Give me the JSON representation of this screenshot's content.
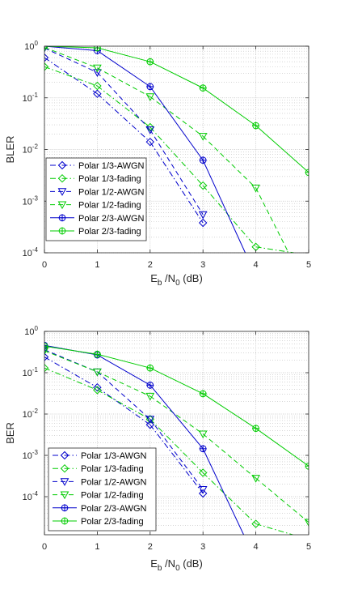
{
  "figure": {
    "colors": {
      "awgn": "#0000cc",
      "fading": "#00cc00",
      "axis": "#262626",
      "grid": "#bdbdbd"
    }
  },
  "chart_data": [
    {
      "type": "line",
      "ylog": true,
      "xlabel": "E_b /N_0 (dB)",
      "xlabel_parts": {
        "e": "E",
        "b": "b",
        "mid": " /N",
        "zero": "0",
        "unit": " (dB)"
      },
      "ylabel": "BLER",
      "xlim": [
        0,
        5
      ],
      "ylim": [
        0.0001,
        1
      ],
      "xticks": [
        0,
        1,
        2,
        3,
        4,
        5
      ],
      "xtick_labels": [
        "0",
        "1",
        "2",
        "3",
        "4",
        "5"
      ],
      "yticks": [
        0.0001,
        0.001,
        0.01,
        0.1,
        1
      ],
      "ytick_labels": [
        {
          "base": "10",
          "exp": "-4"
        },
        {
          "base": "10",
          "exp": "-3"
        },
        {
          "base": "10",
          "exp": "-2"
        },
        {
          "base": "10",
          "exp": "-1"
        },
        {
          "base": "10",
          "exp": "0"
        }
      ],
      "grid": true,
      "minor_grid": true,
      "legend_position": "bottom-left",
      "series": [
        {
          "name": "Polar 1/3-AWGN",
          "color": "#0000cc",
          "dash": "dashdot",
          "marker": "diamond",
          "x": [
            0,
            1,
            2,
            3
          ],
          "y": [
            0.6,
            0.12,
            0.014,
            0.00038
          ]
        },
        {
          "name": "Polar 1/3-fading",
          "color": "#00cc00",
          "dash": "dashdot",
          "marker": "diamond",
          "x": [
            0,
            1,
            2,
            3,
            4,
            4.72
          ],
          "y": [
            0.4,
            0.17,
            0.027,
            0.002,
            0.00013,
            0.0001
          ]
        },
        {
          "name": "Polar 1/2-AWGN",
          "color": "#0000cc",
          "dash": "dashed",
          "marker": "triangle-down",
          "x": [
            0,
            1,
            2,
            3
          ],
          "y": [
            0.92,
            0.31,
            0.024,
            0.00055
          ]
        },
        {
          "name": "Polar 1/2-fading",
          "color": "#00cc00",
          "dash": "dashed",
          "marker": "triangle-down",
          "x": [
            0,
            1,
            2,
            3,
            4,
            4.62
          ],
          "y": [
            0.95,
            0.38,
            0.105,
            0.018,
            0.0018,
            0.0001
          ]
        },
        {
          "name": "Polar 2/3-AWGN",
          "color": "#0000cc",
          "dash": "solid",
          "marker": "hexagram",
          "x": [
            0,
            1,
            2,
            3,
            3.8
          ],
          "y": [
            1.0,
            0.82,
            0.165,
            0.0062,
            0.0001
          ]
        },
        {
          "name": "Polar 2/3-fading",
          "color": "#00cc00",
          "dash": "solid",
          "marker": "hexagram",
          "x": [
            0,
            1,
            2,
            3,
            4,
            5
          ],
          "y": [
            1.0,
            0.93,
            0.5,
            0.155,
            0.029,
            0.0036
          ]
        }
      ]
    },
    {
      "type": "line",
      "ylog": true,
      "xlabel": "E_b /N_0 (dB)",
      "xlabel_parts": {
        "e": "E",
        "b": "b",
        "mid": " /N",
        "zero": "0",
        "unit": " (dB)"
      },
      "ylabel": "BER",
      "xlim": [
        0,
        5
      ],
      "ylim": [
        1.2e-05,
        1
      ],
      "xticks": [
        0,
        1,
        2,
        3,
        4,
        5
      ],
      "xtick_labels": [
        "0",
        "1",
        "2",
        "3",
        "4",
        "5"
      ],
      "yticks": [
        0.0001,
        0.001,
        0.01,
        0.1,
        1
      ],
      "ytick_labels": [
        {
          "base": "10",
          "exp": "-4"
        },
        {
          "base": "10",
          "exp": "-3"
        },
        {
          "base": "10",
          "exp": "-2"
        },
        {
          "base": "10",
          "exp": "-1"
        },
        {
          "base": "10",
          "exp": "0"
        }
      ],
      "grid": true,
      "minor_grid": true,
      "legend_position": "bottom-left",
      "series": [
        {
          "name": "Polar 1/3-AWGN",
          "color": "#0000cc",
          "dash": "dashdot",
          "marker": "diamond",
          "x": [
            0,
            1,
            2,
            3
          ],
          "y": [
            0.24,
            0.044,
            0.0055,
            0.00012
          ]
        },
        {
          "name": "Polar 1/3-fading",
          "color": "#00cc00",
          "dash": "dashdot",
          "marker": "diamond",
          "x": [
            0,
            1,
            2,
            3,
            4,
            4.7
          ],
          "y": [
            0.13,
            0.038,
            0.0075,
            0.00038,
            2.2e-05,
            1.2e-05
          ]
        },
        {
          "name": "Polar 1/2-AWGN",
          "color": "#0000cc",
          "dash": "dashed",
          "marker": "triangle-down",
          "x": [
            0,
            1,
            2,
            3
          ],
          "y": [
            0.36,
            0.105,
            0.0075,
            0.00015
          ]
        },
        {
          "name": "Polar 1/2-fading",
          "color": "#00cc00",
          "dash": "dashed",
          "marker": "triangle-down",
          "x": [
            0,
            1,
            2,
            3,
            4,
            5
          ],
          "y": [
            0.34,
            0.105,
            0.027,
            0.0033,
            0.00028,
            2.4e-05
          ]
        },
        {
          "name": "Polar 2/3-AWGN",
          "color": "#0000cc",
          "dash": "solid",
          "marker": "hexagram",
          "x": [
            0,
            1,
            2,
            3,
            3.77
          ],
          "y": [
            0.46,
            0.27,
            0.05,
            0.00145,
            1.2e-05
          ]
        },
        {
          "name": "Polar 2/3-fading",
          "color": "#00cc00",
          "dash": "solid",
          "marker": "hexagram",
          "x": [
            0,
            1,
            2,
            3,
            4,
            5
          ],
          "y": [
            0.44,
            0.28,
            0.13,
            0.031,
            0.0045,
            0.00055
          ]
        }
      ]
    }
  ]
}
